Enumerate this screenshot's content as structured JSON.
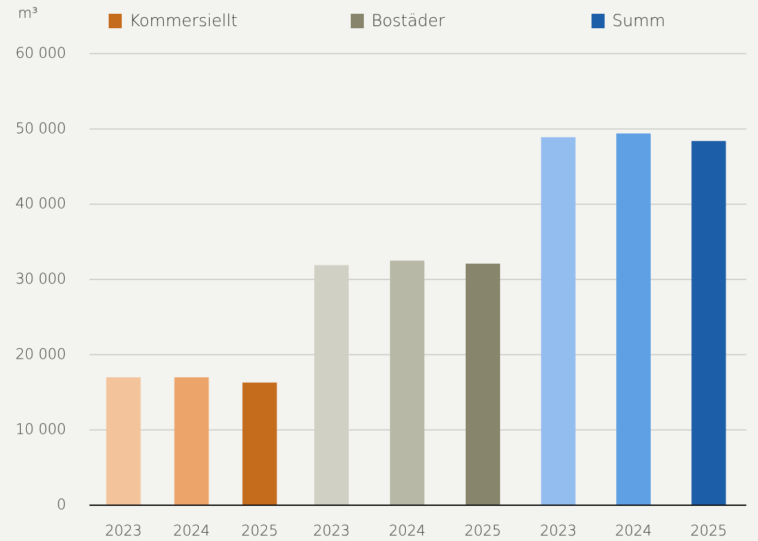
{
  "chart_data": {
    "type": "bar",
    "y_label": "m³",
    "series": [
      {
        "name": "Kommersiellt",
        "color": "#c56b1c",
        "categories": [
          "2023",
          "2024",
          "2025"
        ],
        "values": [
          17000,
          17000,
          16300
        ],
        "colors": [
          "#f3c39b",
          "#eda46a",
          "#c56b1c"
        ]
      },
      {
        "name": "Bostäder",
        "color": "#87866c",
        "categories": [
          "2023",
          "2024",
          "2025"
        ],
        "values": [
          31900,
          32500,
          32100
        ],
        "colors": [
          "#d0d0c4",
          "#b8b8a6",
          "#87866c"
        ]
      },
      {
        "name": "Summ",
        "color": "#1c5ea8",
        "categories": [
          "2023",
          "2024",
          "2025"
        ],
        "values": [
          48900,
          49400,
          48400
        ],
        "colors": [
          "#93bcef",
          "#5f9fe4",
          "#1c5ea8"
        ]
      }
    ],
    "ylim": [
      0,
      60000
    ],
    "yticks": [
      0,
      {
        "value": 10000,
        "label": "10 000"
      },
      {
        "value": 20000,
        "label": "20 000"
      },
      {
        "value": 30000,
        "label": "30 000"
      },
      {
        "value": 40000,
        "label": "40 000"
      },
      {
        "value": 50000,
        "label": "50 000"
      },
      {
        "value": 60000,
        "label": "60 000"
      }
    ],
    "grid": true
  }
}
